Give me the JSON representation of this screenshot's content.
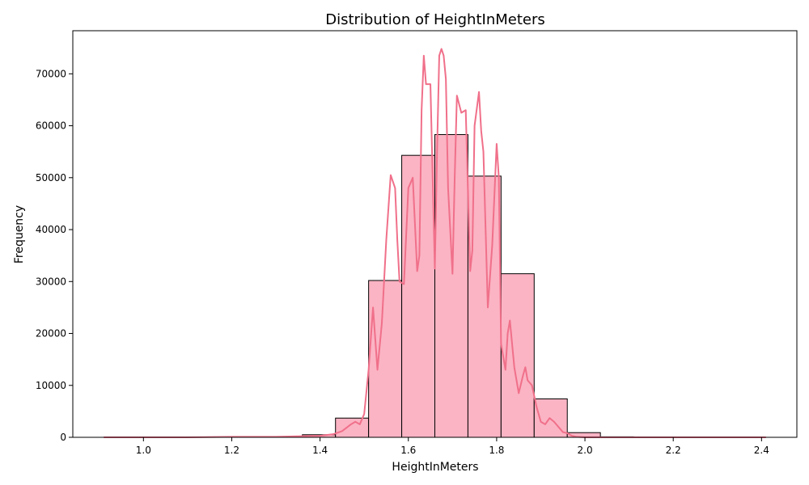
{
  "chart_data": {
    "type": "bar",
    "title": "Distribution of HeightInMeters",
    "xlabel": "HeightInMeters",
    "ylabel": "Frequency",
    "xlim": [
      0.84,
      2.48
    ],
    "ylim": [
      0,
      78300
    ],
    "x_ticks": [
      "1.0",
      "1.2",
      "1.4",
      "1.6",
      "1.8",
      "2.0",
      "2.2",
      "2.4"
    ],
    "y_ticks": [
      "0",
      "10000",
      "20000",
      "30000",
      "40000",
      "50000",
      "60000",
      "70000"
    ],
    "grid": false,
    "colors": {
      "bar_fill": "#fbb4c4",
      "bar_edge": "#000000",
      "kde_line": "#f0708a"
    },
    "bins": [
      {
        "x0": 0.91,
        "x1": 0.985,
        "count": 0
      },
      {
        "x0": 0.985,
        "x1": 1.06,
        "count": 0
      },
      {
        "x0": 1.06,
        "x1": 1.135,
        "count": 0
      },
      {
        "x0": 1.135,
        "x1": 1.21,
        "count": 0
      },
      {
        "x0": 1.21,
        "x1": 1.285,
        "count": 0
      },
      {
        "x0": 1.285,
        "x1": 1.36,
        "count": 100
      },
      {
        "x0": 1.36,
        "x1": 1.435,
        "count": 500
      },
      {
        "x0": 1.435,
        "x1": 1.51,
        "count": 3700
      },
      {
        "x0": 1.51,
        "x1": 1.585,
        "count": 30200
      },
      {
        "x0": 1.585,
        "x1": 1.66,
        "count": 54300
      },
      {
        "x0": 1.66,
        "x1": 1.735,
        "count": 58300
      },
      {
        "x0": 1.735,
        "x1": 1.81,
        "count": 50300
      },
      {
        "x0": 1.81,
        "x1": 1.885,
        "count": 31500
      },
      {
        "x0": 1.885,
        "x1": 1.96,
        "count": 7400
      },
      {
        "x0": 1.96,
        "x1": 2.035,
        "count": 900
      },
      {
        "x0": 2.035,
        "x1": 2.11,
        "count": 100
      },
      {
        "x0": 2.11,
        "x1": 2.185,
        "count": 0
      },
      {
        "x0": 2.185,
        "x1": 2.26,
        "count": 0
      },
      {
        "x0": 2.26,
        "x1": 2.335,
        "count": 0
      },
      {
        "x0": 2.335,
        "x1": 2.41,
        "count": 0
      }
    ],
    "kde": {
      "x": [
        0.91,
        1.0,
        1.1,
        1.2,
        1.3,
        1.35,
        1.4,
        1.43,
        1.45,
        1.47,
        1.48,
        1.49,
        1.5,
        1.51,
        1.52,
        1.53,
        1.54,
        1.55,
        1.56,
        1.57,
        1.575,
        1.58,
        1.59,
        1.6,
        1.61,
        1.62,
        1.625,
        1.63,
        1.635,
        1.64,
        1.65,
        1.66,
        1.665,
        1.67,
        1.675,
        1.68,
        1.685,
        1.69,
        1.7,
        1.705,
        1.71,
        1.72,
        1.73,
        1.74,
        1.745,
        1.75,
        1.76,
        1.765,
        1.77,
        1.775,
        1.78,
        1.79,
        1.8,
        1.805,
        1.81,
        1.82,
        1.825,
        1.83,
        1.84,
        1.85,
        1.86,
        1.865,
        1.87,
        1.88,
        1.89,
        1.9,
        1.91,
        1.92,
        1.93,
        1.94,
        1.95,
        1.96,
        1.97,
        1.98,
        2.0,
        2.03,
        2.1,
        2.2,
        2.41
      ],
      "y": [
        0,
        0,
        0,
        100,
        100,
        200,
        300,
        600,
        1200,
        2500,
        3000,
        2500,
        4500,
        13000,
        25000,
        13000,
        22000,
        38000,
        50500,
        48000,
        38000,
        30000,
        29500,
        48000,
        50000,
        32000,
        35000,
        63000,
        73500,
        68000,
        68000,
        32500,
        55000,
        73500,
        74800,
        73500,
        69000,
        48000,
        31500,
        50000,
        65800,
        62500,
        63000,
        32000,
        36000,
        60000,
        66500,
        59000,
        55000,
        40000,
        25000,
        37000,
        56500,
        50000,
        18000,
        13000,
        20000,
        22500,
        13500,
        8500,
        12000,
        13500,
        11000,
        10000,
        6000,
        3000,
        2500,
        3700,
        3000,
        2000,
        1000,
        800,
        300,
        100,
        0,
        0,
        0,
        0,
        0
      ]
    }
  }
}
